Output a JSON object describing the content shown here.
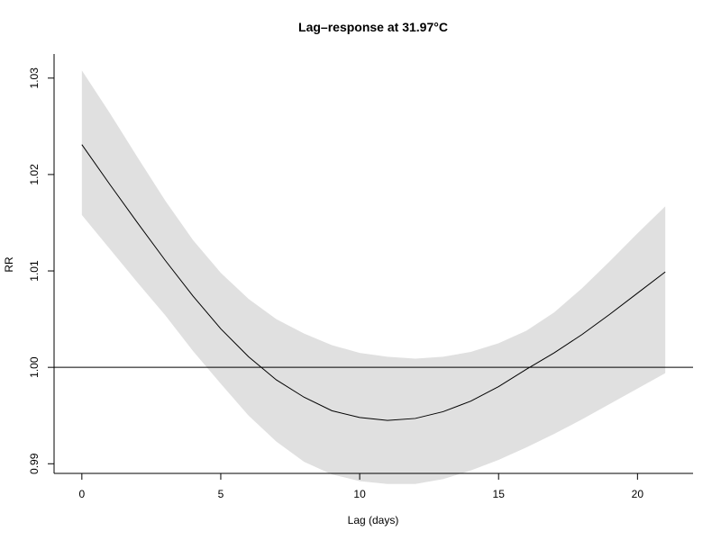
{
  "chart_data": {
    "type": "line",
    "title": "Lag–response at 31.97°C",
    "xlabel": "Lag (days)",
    "ylabel": "RR",
    "xlim": [
      -1,
      22
    ],
    "ylim": [
      0.989,
      1.0325
    ],
    "xticks": [
      0,
      5,
      10,
      15,
      20
    ],
    "xtick_labels": [
      "0",
      "5",
      "10",
      "15",
      "20"
    ],
    "yticks": [
      0.99,
      1.0,
      1.01,
      1.02,
      1.03
    ],
    "ytick_labels": [
      "0.99",
      "1.00",
      "1.01",
      "1.02",
      "1.03"
    ],
    "reference_line": 1.0,
    "grid": false,
    "series": [
      {
        "x": [
          0,
          1,
          2,
          3,
          4,
          5,
          6,
          7,
          8,
          9,
          10,
          11,
          12,
          13,
          14,
          15,
          16,
          17,
          18,
          19,
          20,
          21
        ],
        "values": [
          1.0231,
          1.019,
          1.015,
          1.0111,
          1.0074,
          1.004,
          1.0011,
          0.9987,
          0.9969,
          0.9955,
          0.9948,
          0.9945,
          0.9947,
          0.9954,
          0.9965,
          0.998,
          0.9998,
          1.0015,
          1.0034,
          1.0055,
          1.0077,
          1.0099
        ],
        "lower": [
          1.0158,
          1.0123,
          1.0088,
          1.0054,
          1.0017,
          0.9983,
          0.995,
          0.9923,
          0.9902,
          0.9889,
          0.9882,
          0.9879,
          0.9879,
          0.9884,
          0.9893,
          0.9904,
          0.9917,
          0.9931,
          0.9946,
          0.9962,
          0.9978,
          0.9994
        ],
        "upper": [
          1.0308,
          1.0264,
          1.0218,
          1.0173,
          1.0132,
          1.0098,
          1.0071,
          1.005,
          1.0035,
          1.0023,
          1.0015,
          1.0011,
          1.0009,
          1.0011,
          1.0016,
          1.0025,
          1.0038,
          1.0057,
          1.0082,
          1.011,
          1.0139,
          1.0167
        ]
      }
    ]
  }
}
